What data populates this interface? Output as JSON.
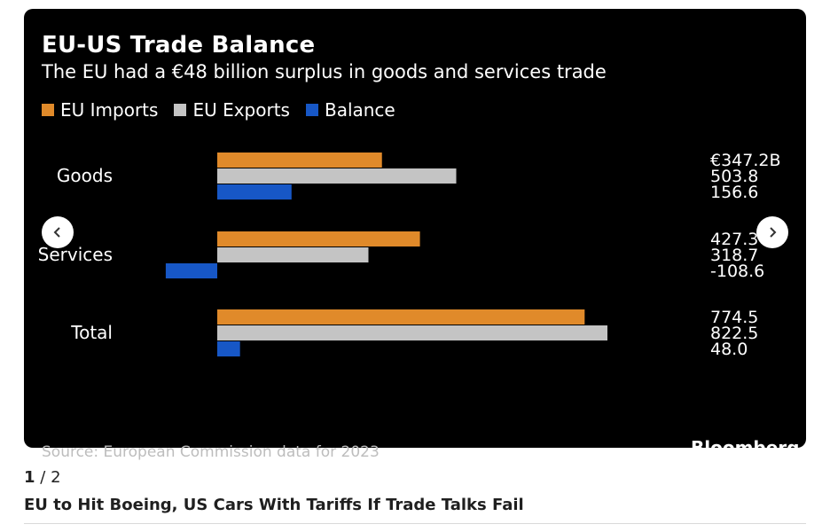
{
  "pager": {
    "current": "1",
    "separator": "/",
    "total": "2"
  },
  "headline": "EU to Hit Boeing, US Cars With Tariffs If Trade Talks Fail",
  "nav": {
    "prev_icon": "chevron-left-icon",
    "next_icon": "chevron-right-icon"
  },
  "chart_data": {
    "type": "bar",
    "orientation": "horizontal",
    "title": "EU-US Trade Balance",
    "subtitle": "The EU had a €48 billion surplus in goods and services trade",
    "categories": [
      "Goods",
      "Services",
      "Total"
    ],
    "series": [
      {
        "name": "EU Imports",
        "color": "#e08a2a",
        "values": [
          347.2,
          427.3,
          774.5
        ],
        "labels": [
          "€347.2B",
          "427.3",
          "774.5"
        ]
      },
      {
        "name": "EU Exports",
        "color": "#c4c4c4",
        "values": [
          503.8,
          318.7,
          822.5
        ],
        "labels": [
          "503.8",
          "318.7",
          "822.5"
        ]
      },
      {
        "name": "Balance",
        "color": "#1757c6",
        "values": [
          156.6,
          -108.6,
          48.0
        ],
        "labels": [
          "156.6",
          "-108.6",
          "48.0"
        ]
      }
    ],
    "legend_position": "top-left",
    "grid": false,
    "footer_source": "Source: European Commission data for 2023",
    "footer_brand": "Bloomberg"
  }
}
